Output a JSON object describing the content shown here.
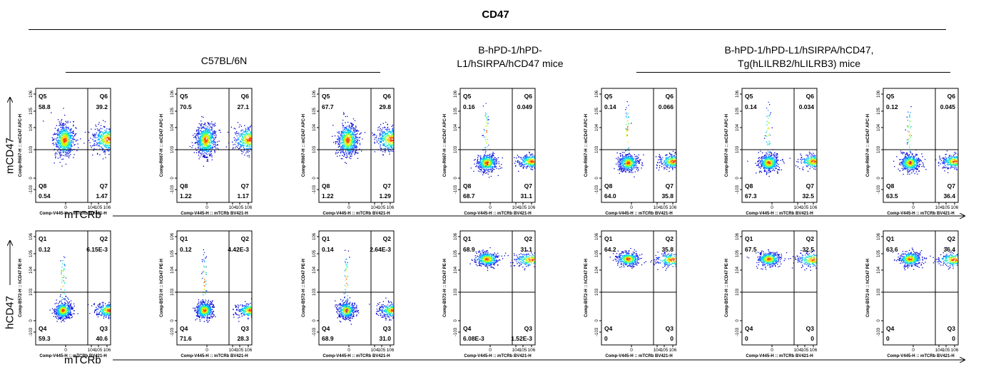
{
  "title": "CD47",
  "groups": [
    {
      "label": "C57BL/6N"
    },
    {
      "label": "B-hPD-1/hPD-L1/hSIRPA/hCD47 mice",
      "line1": "B-hPD-1/hPD-",
      "line2": "L1/hSIRPA/hCD47 mice"
    },
    {
      "label": "B-hPD-1/hPD-L1/hSIRPA/hCD47, Tg(hLILRB2/hLILRB3) mice",
      "line1": "B-hPD-1/hPD-L1/hSIRPA/hCD47,",
      "line2": "Tg(hLILRB2/hLILRB3) mice"
    }
  ],
  "rows": [
    {
      "y_label": "mCD47",
      "x_label": "mTCRb"
    },
    {
      "y_label": "hCD47",
      "x_label": "mTCRb"
    }
  ],
  "chart_data": {
    "type": "scatter",
    "subtype": "flow cytometry density dot plots with quadrant gates",
    "x_axis_label": "Comp-V445-H :: mTCRb BV421-H",
    "x_ticks": [
      "0",
      "10^4",
      "10^5",
      "10^6"
    ],
    "y_ticks": [
      "-10^3",
      "0",
      "10^3",
      "10^4",
      "10^5",
      "10^6"
    ],
    "panels": [
      {
        "row": 0,
        "group": "C57BL/6N",
        "y_axis_label": "Comp-R667-H :: mCD47 APC-H",
        "quadrants": [
          {
            "name": "Q5",
            "value": "58.8"
          },
          {
            "name": "Q6",
            "value": "39.2"
          },
          {
            "name": "Q7",
            "value": "1.47"
          },
          {
            "name": "Q8",
            "value": "0.54"
          }
        ],
        "population": "high"
      },
      {
        "row": 0,
        "group": "C57BL/6N",
        "y_axis_label": "Comp-R667-H :: mCD47 APC-H",
        "quadrants": [
          {
            "name": "Q5",
            "value": "70.5"
          },
          {
            "name": "Q6",
            "value": "27.1"
          },
          {
            "name": "Q7",
            "value": "1.17"
          },
          {
            "name": "Q8",
            "value": "1.22"
          }
        ],
        "population": "high"
      },
      {
        "row": 0,
        "group": "C57BL/6N",
        "y_axis_label": "Comp-R667-H :: mCD47 APC-H",
        "quadrants": [
          {
            "name": "Q5",
            "value": "67.7"
          },
          {
            "name": "Q6",
            "value": "29.8"
          },
          {
            "name": "Q7",
            "value": "1.29"
          },
          {
            "name": "Q8",
            "value": "1.22"
          }
        ],
        "population": "high"
      },
      {
        "row": 0,
        "group": "B-hPD-1/hPD-L1/hSIRPA/hCD47 mice",
        "y_axis_label": "Comp-R667-H :: mCD47 APC-H",
        "quadrants": [
          {
            "name": "Q5",
            "value": "0.16"
          },
          {
            "name": "Q6",
            "value": "0.049"
          },
          {
            "name": "Q7",
            "value": "31.1"
          },
          {
            "name": "Q8",
            "value": "68.7"
          }
        ],
        "population": "low"
      },
      {
        "row": 0,
        "group": "B-hPD-1/hPD-L1/hSIRPA/hCD47, Tg(hLILRB2/hLILRB3) mice",
        "y_axis_label": "Comp-R667-H :: mCD47 APC-H",
        "quadrants": [
          {
            "name": "Q5",
            "value": "0.14"
          },
          {
            "name": "Q6",
            "value": "0.066"
          },
          {
            "name": "Q7",
            "value": "35.8"
          },
          {
            "name": "Q8",
            "value": "64.0"
          }
        ],
        "population": "low"
      },
      {
        "row": 0,
        "group": "B-hPD-1/hPD-L1/hSIRPA/hCD47, Tg(hLILRB2/hLILRB3) mice",
        "y_axis_label": "Comp-R667-H :: mCD47 APC-H",
        "quadrants": [
          {
            "name": "Q5",
            "value": "0.14"
          },
          {
            "name": "Q6",
            "value": "0.034"
          },
          {
            "name": "Q7",
            "value": "32.5"
          },
          {
            "name": "Q8",
            "value": "67.3"
          }
        ],
        "population": "low"
      },
      {
        "row": 0,
        "group": "B-hPD-1/hPD-L1/hSIRPA/hCD47, Tg(hLILRB2/hLILRB3) mice",
        "y_axis_label": "Comp-R667-H :: mCD47 APC-H",
        "quadrants": [
          {
            "name": "Q5",
            "value": "0.12"
          },
          {
            "name": "Q6",
            "value": "0.045"
          },
          {
            "name": "Q7",
            "value": "36.4"
          },
          {
            "name": "Q8",
            "value": "63.5"
          }
        ],
        "population": "low"
      },
      {
        "row": 1,
        "group": "C57BL/6N",
        "y_axis_label": "Comp-B572-H :: hCD47 PE-H",
        "quadrants": [
          {
            "name": "Q1",
            "value": "0.12"
          },
          {
            "name": "Q2",
            "value": "6.15E-3"
          },
          {
            "name": "Q3",
            "value": "40.6"
          },
          {
            "name": "Q4",
            "value": "59.3"
          }
        ],
        "population": "low"
      },
      {
        "row": 1,
        "group": "C57BL/6N",
        "y_axis_label": "Comp-B572-H :: hCD47 PE-H",
        "quadrants": [
          {
            "name": "Q1",
            "value": "0.12"
          },
          {
            "name": "Q2",
            "value": "4.42E-3"
          },
          {
            "name": "Q3",
            "value": "28.3"
          },
          {
            "name": "Q4",
            "value": "71.6"
          }
        ],
        "population": "low"
      },
      {
        "row": 1,
        "group": "C57BL/6N",
        "y_axis_label": "Comp-B572-H :: hCD47 PE-H",
        "quadrants": [
          {
            "name": "Q1",
            "value": "0.14"
          },
          {
            "name": "Q2",
            "value": "2.64E-3"
          },
          {
            "name": "Q3",
            "value": "31.0"
          },
          {
            "name": "Q4",
            "value": "68.9"
          }
        ],
        "population": "low"
      },
      {
        "row": 1,
        "group": "B-hPD-1/hPD-L1/hSIRPA/hCD47 mice",
        "y_axis_label": "Comp-B572-H :: hCD47 PE-H",
        "quadrants": [
          {
            "name": "Q1",
            "value": "68.9"
          },
          {
            "name": "Q2",
            "value": "31.1"
          },
          {
            "name": "Q3",
            "value": "1.52E-3"
          },
          {
            "name": "Q4",
            "value": "6.08E-3"
          }
        ],
        "population": "high"
      },
      {
        "row": 1,
        "group": "B-hPD-1/hPD-L1/hSIRPA/hCD47, Tg(hLILRB2/hLILRB3) mice",
        "y_axis_label": "Comp-B572-H :: hCD47 PE-H",
        "quadrants": [
          {
            "name": "Q1",
            "value": "64.2"
          },
          {
            "name": "Q2",
            "value": "35.8"
          },
          {
            "name": "Q3",
            "value": "0"
          },
          {
            "name": "Q4",
            "value": "0"
          }
        ],
        "population": "high"
      },
      {
        "row": 1,
        "group": "B-hPD-1/hPD-L1/hSIRPA/hCD47, Tg(hLILRB2/hLILRB3) mice",
        "y_axis_label": "Comp-B572-H :: hCD47 PE-H",
        "quadrants": [
          {
            "name": "Q1",
            "value": "67.5"
          },
          {
            "name": "Q2",
            "value": "32.5"
          },
          {
            "name": "Q3",
            "value": "0"
          },
          {
            "name": "Q4",
            "value": "0"
          }
        ],
        "population": "high"
      },
      {
        "row": 1,
        "group": "B-hPD-1/hPD-L1/hSIRPA/hCD47, Tg(hLILRB2/hLILRB3) mice",
        "y_axis_label": "Comp-B572-H :: hCD47 PE-H",
        "quadrants": [
          {
            "name": "Q1",
            "value": "63.6"
          },
          {
            "name": "Q2",
            "value": "36.4"
          },
          {
            "name": "Q3",
            "value": "0"
          },
          {
            "name": "Q4",
            "value": "0"
          }
        ],
        "population": "high"
      }
    ]
  }
}
